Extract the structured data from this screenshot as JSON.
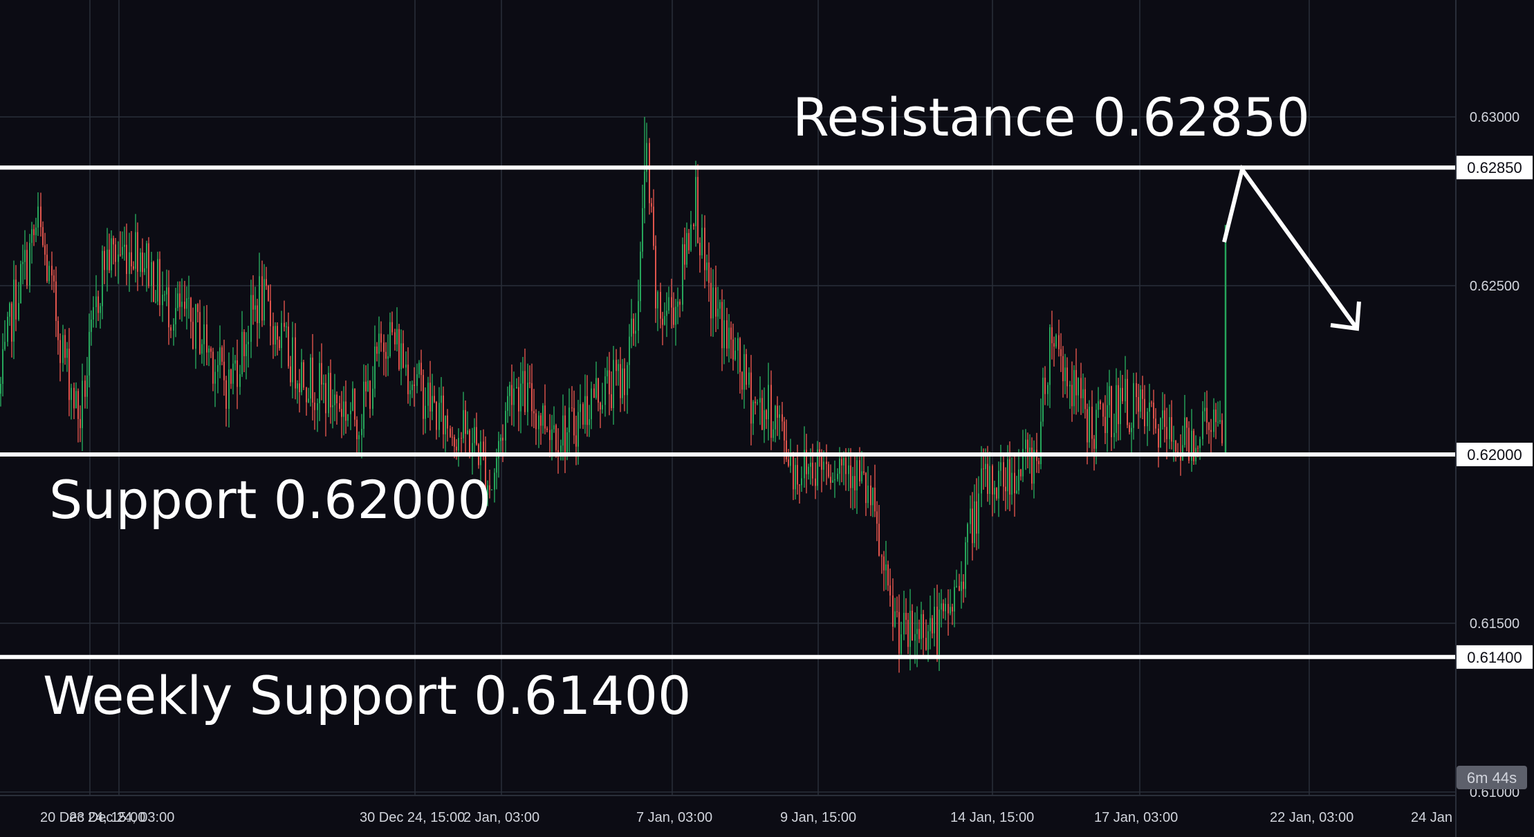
{
  "chart_data": {
    "type": "candlestick",
    "title": "",
    "xlabel": "",
    "ylabel": "",
    "ylim": [
      0.6102,
      0.6333
    ],
    "grid": true,
    "colors": {
      "background": "#0c0c14",
      "up": "#26a65b",
      "down": "#e0544c",
      "grid": "#2a2e39",
      "axis_text": "#d1d4dc",
      "annotation": "#ffffff"
    },
    "y_ticks": [
      0.63,
      0.625,
      0.615,
      0.61
    ],
    "y_tick_labels": [
      "0.63000",
      "0.62500",
      "0.61500",
      "0.61000"
    ],
    "x_ticks": [
      "20 Dec 24, 15:00",
      "23 Dec 24, 03:00",
      "30 Dec 24, 15:00",
      "2 Jan, 03:00",
      "7 Jan, 03:00",
      "9 Jan, 15:00",
      "14 Jan, 15:00",
      "17 Jan, 03:00",
      "22 Jan, 03:00",
      "24 Jan"
    ],
    "price_path": [
      [
        0,
        0.6218
      ],
      [
        20,
        0.6245
      ],
      [
        55,
        0.6268
      ],
      [
        90,
        0.6232
      ],
      [
        115,
        0.621
      ],
      [
        150,
        0.6258
      ],
      [
        200,
        0.6262
      ],
      [
        240,
        0.6245
      ],
      [
        290,
        0.6236
      ],
      [
        330,
        0.622
      ],
      [
        375,
        0.6247
      ],
      [
        420,
        0.6228
      ],
      [
        470,
        0.6218
      ],
      [
        520,
        0.6211
      ],
      [
        560,
        0.6237
      ],
      [
        600,
        0.6222
      ],
      [
        640,
        0.621
      ],
      [
        690,
        0.6203
      ],
      [
        710,
        0.619
      ],
      [
        740,
        0.6222
      ],
      [
        780,
        0.6212
      ],
      [
        820,
        0.6206
      ],
      [
        860,
        0.6218
      ],
      [
        900,
        0.6222
      ],
      [
        920,
        0.624
      ],
      [
        935,
        0.6289
      ],
      [
        950,
        0.624
      ],
      [
        980,
        0.6246
      ],
      [
        1005,
        0.6278
      ],
      [
        1020,
        0.625
      ],
      [
        1060,
        0.623
      ],
      [
        1090,
        0.6215
      ],
      [
        1120,
        0.6212
      ],
      [
        1150,
        0.6195
      ],
      [
        1180,
        0.6198
      ],
      [
        1230,
        0.6198
      ],
      [
        1260,
        0.6185
      ],
      [
        1285,
        0.6155
      ],
      [
        1310,
        0.6145
      ],
      [
        1335,
        0.615
      ],
      [
        1360,
        0.6148
      ],
      [
        1385,
        0.616
      ],
      [
        1400,
        0.6175
      ],
      [
        1420,
        0.619
      ],
      [
        1460,
        0.6194
      ],
      [
        1500,
        0.62
      ],
      [
        1520,
        0.6238
      ],
      [
        1545,
        0.6222
      ],
      [
        1580,
        0.6207
      ],
      [
        1620,
        0.6216
      ],
      [
        1660,
        0.621
      ],
      [
        1690,
        0.6205
      ],
      [
        1720,
        0.6204
      ],
      [
        1750,
        0.6212
      ],
      [
        1768,
        0.6202
      ],
      [
        1773,
        0.6265
      ]
    ],
    "levels": [
      {
        "label": "0.62850",
        "value": 0.6285
      },
      {
        "label": "0.62000",
        "value": 0.62
      },
      {
        "label": "0.61400",
        "value": 0.614
      }
    ],
    "annotations": [
      {
        "text": "Resistance 0.62850"
      },
      {
        "text": "Support 0.62000"
      },
      {
        "text": "Weekly Support 0.61400"
      }
    ],
    "countdown": "6m 44s"
  }
}
